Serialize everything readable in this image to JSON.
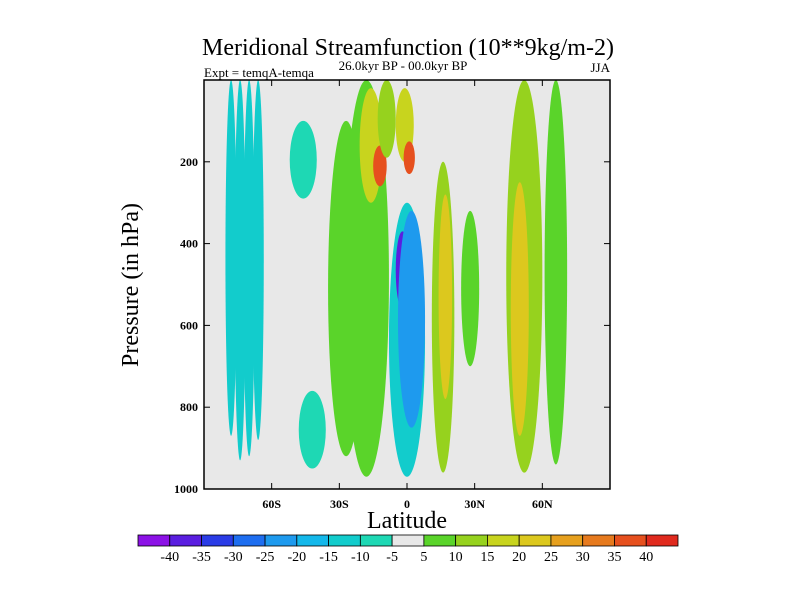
{
  "chart_data": {
    "type": "heatmap",
    "title": "Meridional Streamfunction (10**9kg/m-2)",
    "left_label": "Expt = temqA-temqa",
    "center_label": "26.0kyr BP - 00.0kyr BP",
    "right_label": "JJA",
    "xlabel": "Latitude",
    "ylabel": "Pressure (in hPa)",
    "xlim": [
      -90,
      90
    ],
    "ylim": [
      1000,
      0
    ],
    "x_ticks": [
      -60,
      -30,
      0,
      30,
      60
    ],
    "x_tick_labels": [
      "60S",
      "30S",
      "0",
      "30N",
      "60N"
    ],
    "y_ticks": [
      200,
      400,
      600,
      800,
      1000
    ],
    "y_tick_labels": [
      "200",
      "400",
      "600",
      "800",
      "1000"
    ],
    "background_color": "#e8e8e8",
    "colorbar": {
      "levels": [
        -40,
        -35,
        -30,
        -25,
        -20,
        -15,
        -10,
        -5,
        5,
        10,
        15,
        20,
        25,
        30,
        35,
        40
      ],
      "labels": [
        "-40",
        "-35",
        "-30",
        "-25",
        "-20",
        "-15",
        "-10",
        "-5",
        "5",
        "10",
        "15",
        "20",
        "25",
        "30",
        "35",
        "40"
      ],
      "colors": [
        "#8c12e6",
        "#5a1ee0",
        "#2a3ce6",
        "#1e6ef0",
        "#1e9aee",
        "#14b8ea",
        "#12cccc",
        "#1ed8b4",
        "#e8e8e8",
        "#5ad42a",
        "#96d21e",
        "#c8d41e",
        "#dcc81e",
        "#e6a01e",
        "#e67a1e",
        "#e6501e",
        "#e02a1e"
      ]
    },
    "features": [
      {
        "lon": -78,
        "lat_w": 2.5,
        "p_top": 0,
        "p_bot": 870,
        "val": -12
      },
      {
        "lon": -74,
        "lat_w": 2.5,
        "p_top": 0,
        "p_bot": 930,
        "val": -12
      },
      {
        "lon": -70,
        "lat_w": 2.5,
        "p_top": 0,
        "p_bot": 920,
        "val": -12
      },
      {
        "lon": -66,
        "lat_w": 2.5,
        "p_top": 0,
        "p_bot": 880,
        "val": -12
      },
      {
        "lon": -46,
        "lat_w": 6,
        "p_top": 100,
        "p_bot": 290,
        "val": -9
      },
      {
        "lon": -42,
        "lat_w": 6,
        "p_top": 760,
        "p_bot": 950,
        "val": -9
      },
      {
        "lon": -27,
        "lat_w": 8,
        "p_top": 100,
        "p_bot": 920,
        "val": 7
      },
      {
        "lon": -18,
        "lat_w": 10,
        "p_top": 0,
        "p_bot": 970,
        "val": 8
      },
      {
        "lon": -16,
        "lat_w": 5,
        "p_top": 20,
        "p_bot": 300,
        "val": 18
      },
      {
        "lon": -12,
        "lat_w": 3,
        "p_top": 160,
        "p_bot": 260,
        "val": 36
      },
      {
        "lon": -9,
        "lat_w": 4,
        "p_top": 0,
        "p_bot": 190,
        "val": 13
      },
      {
        "lon": -1,
        "lat_w": 4,
        "p_top": 20,
        "p_bot": 200,
        "val": 16
      },
      {
        "lon": 1,
        "lat_w": 2.5,
        "p_top": 150,
        "p_bot": 230,
        "val": 35
      },
      {
        "lon": 0,
        "lat_w": 8,
        "p_top": 300,
        "p_bot": 970,
        "val": -12
      },
      {
        "lon": -2,
        "lat_w": 3,
        "p_top": 370,
        "p_bot": 560,
        "val": -38
      },
      {
        "lon": 2,
        "lat_w": 6,
        "p_top": 320,
        "p_bot": 850,
        "val": -25
      },
      {
        "lon": 16,
        "lat_w": 5,
        "p_top": 200,
        "p_bot": 960,
        "val": 10
      },
      {
        "lon": 17,
        "lat_w": 3,
        "p_top": 280,
        "p_bot": 780,
        "val": 20
      },
      {
        "lon": 28,
        "lat_w": 4,
        "p_top": 320,
        "p_bot": 700,
        "val": 7
      },
      {
        "lon": 52,
        "lat_w": 8,
        "p_top": 0,
        "p_bot": 960,
        "val": 14
      },
      {
        "lon": 50,
        "lat_w": 4,
        "p_top": 250,
        "p_bot": 870,
        "val": 22
      },
      {
        "lon": 66,
        "lat_w": 5,
        "p_top": 0,
        "p_bot": 940,
        "val": 8
      }
    ]
  }
}
